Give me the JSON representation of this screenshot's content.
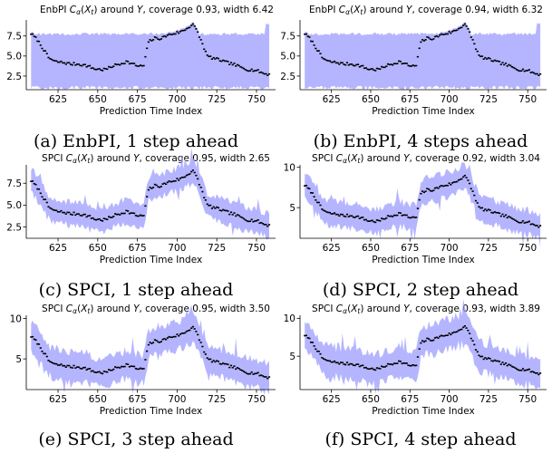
{
  "colors": {
    "band": "#9999ff",
    "point": "#000000",
    "axis": "#000000"
  },
  "chart_data": [
    {
      "type": "area",
      "title": "EnbPI C_α(X_t) around Y, coverage 0.93, width 6.42",
      "title_parts": {
        "pre": "EnbPI ",
        "rest": " around ",
        "Y": "Y",
        "post": ", coverage 0.93, width 6.42"
      },
      "caption": "(a) EnbPI, 1 step ahead",
      "xlabel": "Prediction Time Index",
      "xticks": [
        625,
        650,
        675,
        700,
        725,
        750
      ],
      "yticks": [
        "2.5",
        "5.0",
        "7.5"
      ],
      "xlim": [
        605,
        762
      ],
      "ylim": [
        0.8,
        9.5
      ],
      "band_model": "enbpi",
      "band_width": 6.42,
      "series": [
        {
          "name": "Y",
          "values": []
        }
      ]
    },
    {
      "type": "area",
      "title": "EnbPI C_α(X_t) around Y, coverage 0.94, width 6.32",
      "title_parts": {
        "pre": "EnbPI ",
        "rest": " around ",
        "Y": "Y",
        "post": ", coverage 0.94, width 6.32"
      },
      "caption": "(b) EnbPI, 4 steps ahead",
      "xlabel": "Prediction Time Index",
      "xticks": [
        625,
        650,
        675,
        700,
        725,
        750
      ],
      "yticks": [
        "2.5",
        "5.0",
        "7.5"
      ],
      "xlim": [
        605,
        762
      ],
      "ylim": [
        0.8,
        9.5
      ],
      "band_model": "enbpi",
      "band_width": 6.32,
      "series": [
        {
          "name": "Y",
          "values": []
        }
      ]
    },
    {
      "type": "area",
      "title": "SPCI C_α(X_t) around Y, coverage 0.95, width 2.65",
      "title_parts": {
        "pre": "SPCI ",
        "rest": " around ",
        "Y": "Y",
        "post": ", coverage 0.95, width 2.65"
      },
      "caption": "(c) SPCI, 1 step ahead",
      "xlabel": "Prediction Time Index",
      "xticks": [
        625,
        650,
        675,
        700,
        725,
        750
      ],
      "yticks": [
        "2.5",
        "5.0",
        "7.5"
      ],
      "xlim": [
        605,
        762
      ],
      "ylim": [
        1.2,
        9.6
      ],
      "band_model": "spci",
      "band_width": 2.65,
      "series": [
        {
          "name": "Y",
          "values": []
        }
      ]
    },
    {
      "type": "area",
      "title": "SPCI C_α(X_t) around Y, coverage 0.92, width 3.04",
      "title_parts": {
        "pre": "SPCI ",
        "rest": " around ",
        "Y": "Y",
        "post": ", coverage 0.92, width 3.04"
      },
      "caption": "(d) SPCI, 2 step ahead",
      "xlabel": "Prediction Time Index",
      "xticks": [
        625,
        650,
        675,
        700,
        725,
        750
      ],
      "yticks": [
        "5",
        "10"
      ],
      "xlim": [
        605,
        762
      ],
      "ylim": [
        1.2,
        10.3
      ],
      "band_model": "spci",
      "band_width": 3.04,
      "series": [
        {
          "name": "Y",
          "values": []
        }
      ]
    },
    {
      "type": "area",
      "title": "SPCI C_α(X_t) around Y, coverage 0.95, width 3.50",
      "title_parts": {
        "pre": "SPCI ",
        "rest": " around ",
        "Y": "Y",
        "post": ", coverage 0.95, width 3.50"
      },
      "caption": "(e) SPCI, 3 step ahead",
      "xlabel": "Prediction Time Index",
      "xticks": [
        625,
        650,
        675,
        700,
        725,
        750
      ],
      "yticks": [
        "5",
        "10"
      ],
      "xlim": [
        605,
        762
      ],
      "ylim": [
        1.2,
        10.4
      ],
      "band_model": "spci",
      "band_width": 3.5,
      "series": [
        {
          "name": "Y",
          "values": []
        }
      ]
    },
    {
      "type": "area",
      "title": "SPCI C_α(X_t) around Y, coverage 0.93, width 3.89",
      "title_parts": {
        "pre": "SPCI ",
        "rest": " around ",
        "Y": "Y",
        "post": ", coverage 0.93, width 3.89"
      },
      "caption": "(f) SPCI, 4 step ahead",
      "xlabel": "Prediction Time Index",
      "xticks": [
        625,
        650,
        675,
        700,
        725,
        750
      ],
      "yticks": [
        "5",
        "10"
      ],
      "xlim": [
        605,
        762
      ],
      "ylim": [
        0.6,
        10.4
      ],
      "band_model": "spci",
      "band_width": 3.89,
      "series": [
        {
          "name": "Y",
          "values": []
        }
      ]
    }
  ],
  "y_profile": [
    [
      608,
      7.8
    ],
    [
      612,
      7.0
    ],
    [
      616,
      5.8
    ],
    [
      619,
      4.8
    ],
    [
      623,
      4.3
    ],
    [
      628,
      4.2
    ],
    [
      633,
      4.0
    ],
    [
      638,
      4.0
    ],
    [
      643,
      3.8
    ],
    [
      648,
      3.4
    ],
    [
      653,
      3.3
    ],
    [
      656,
      3.4
    ],
    [
      660,
      3.8
    ],
    [
      664,
      4.0
    ],
    [
      668,
      4.3
    ],
    [
      672,
      4.0
    ],
    [
      676,
      3.7
    ],
    [
      679,
      3.8
    ],
    [
      682,
      6.8
    ],
    [
      686,
      7.2
    ],
    [
      690,
      7.2
    ],
    [
      694,
      7.6
    ],
    [
      698,
      7.8
    ],
    [
      702,
      8.0
    ],
    [
      706,
      8.4
    ],
    [
      710,
      9.0
    ],
    [
      713,
      7.9
    ],
    [
      716,
      6.5
    ],
    [
      719,
      5.0
    ],
    [
      723,
      4.7
    ],
    [
      727,
      4.5
    ],
    [
      731,
      4.2
    ],
    [
      735,
      4.0
    ],
    [
      740,
      3.6
    ],
    [
      745,
      3.3
    ],
    [
      750,
      3.2
    ],
    [
      755,
      2.8
    ],
    [
      758,
      2.7
    ]
  ],
  "panel_series_ids": [
    "a",
    "b",
    "c",
    "d",
    "e",
    "f"
  ]
}
